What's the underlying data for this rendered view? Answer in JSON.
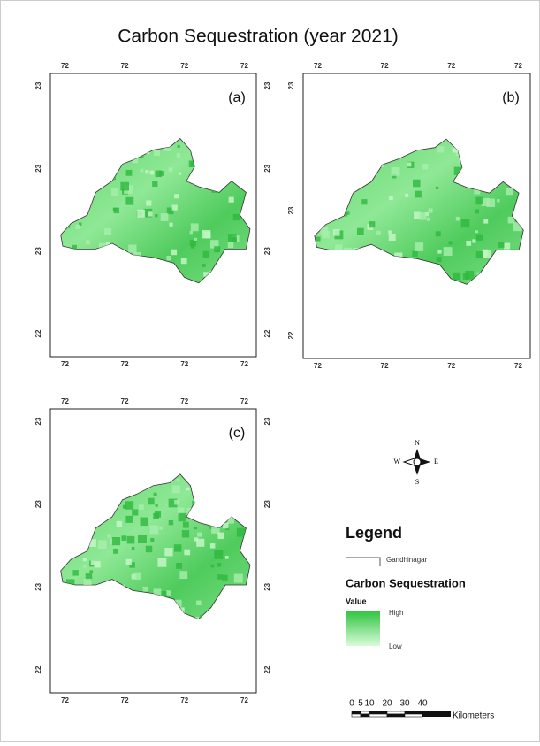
{
  "title": "Carbon Sequestration (year 2021)",
  "panels": [
    {
      "label": "(a)",
      "top_labels": [
        "72",
        "72",
        "72",
        "72"
      ],
      "bottom_labels": [
        "72",
        "72",
        "72",
        "72"
      ],
      "left_labels": [
        "23",
        "23",
        "23",
        "22"
      ],
      "right_labels": [
        "23",
        "23",
        "23",
        "22"
      ]
    },
    {
      "label": "(b)",
      "top_labels": [
        "72",
        "72",
        "72",
        "72"
      ],
      "bottom_labels": [
        "72",
        "72",
        "72",
        "72"
      ],
      "left_labels": [
        "23",
        "23",
        "22"
      ],
      "right_labels": [
        "23",
        "23",
        "22"
      ]
    },
    {
      "label": "(c)",
      "top_labels": [
        "72",
        "72",
        "72",
        "72"
      ],
      "bottom_labels": [
        "72",
        "72",
        "72",
        "72"
      ],
      "left_labels": [
        "23",
        "23",
        "23",
        "22"
      ],
      "right_labels": [
        "23",
        "23",
        "23",
        "22"
      ]
    }
  ],
  "compass": {
    "n": "N",
    "s": "S",
    "e": "E",
    "w": "W"
  },
  "legend": {
    "title": "Legend",
    "boundary_label": "Gandhinagar",
    "layer_title": "Carbon Sequestration",
    "value_label": "Value",
    "high": "High",
    "low": "Low"
  },
  "scale_bar": {
    "ticks": [
      "0",
      "5",
      "10",
      "20",
      "30",
      "40"
    ],
    "unit": "Kilometers"
  }
}
